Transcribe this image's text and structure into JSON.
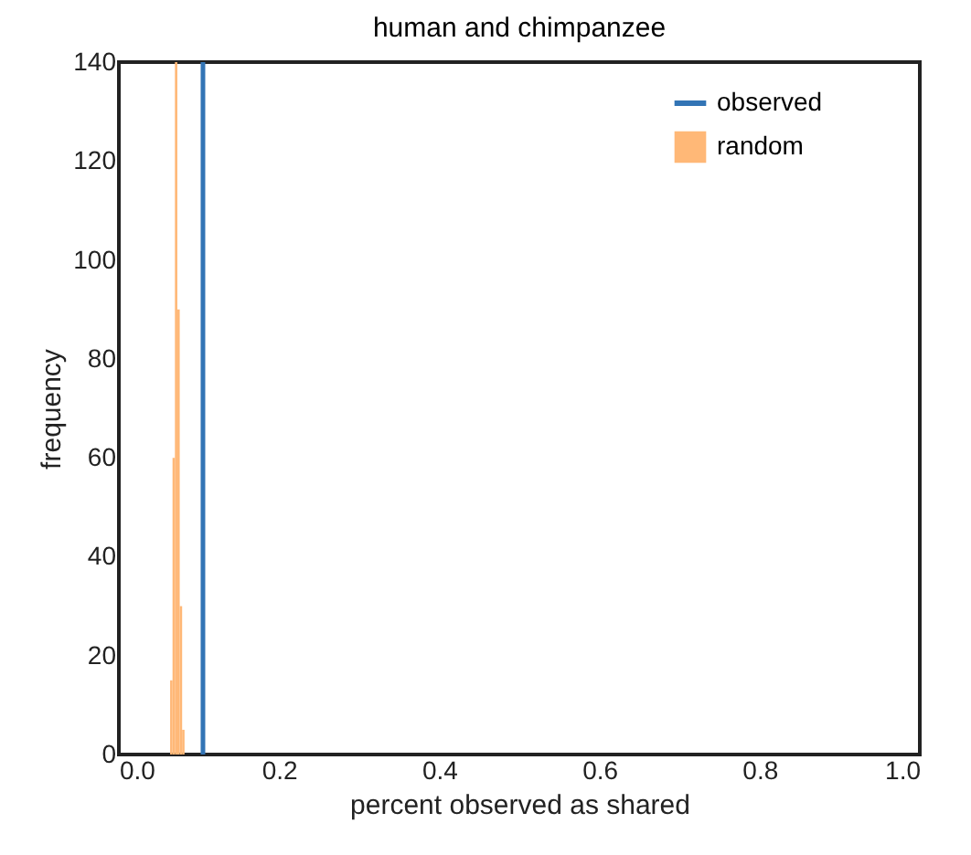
{
  "chart_data": {
    "type": "histogram",
    "title": "human and chimpanzee",
    "xlabel": "percent observed as shared",
    "ylabel": "frequency",
    "xlim": [
      0.0,
      1.0
    ],
    "xticks": [
      {
        "value": 0,
        "label": "0.0"
      },
      0.2,
      0.4,
      0.6,
      0.8,
      {
        "value": 1,
        "label": "1.0"
      }
    ],
    "ylim": [
      0,
      140
    ],
    "yticks": [
      0,
      20,
      40,
      60,
      80,
      100,
      120,
      140
    ],
    "grid": false,
    "legend": "top right",
    "series": [
      {
        "name": "observed",
        "type": "line",
        "color": "#3274b5",
        "x": [
          0.105,
          0.105
        ],
        "values": [
          0,
          140
        ]
      },
      {
        "name": "random",
        "color": "#ffb877",
        "bins": [
          0.064,
          0.067,
          0.07,
          0.073,
          0.076,
          0.079,
          0.082
        ],
        "values": [
          15,
          60,
          140,
          90,
          30,
          5
        ]
      }
    ]
  }
}
